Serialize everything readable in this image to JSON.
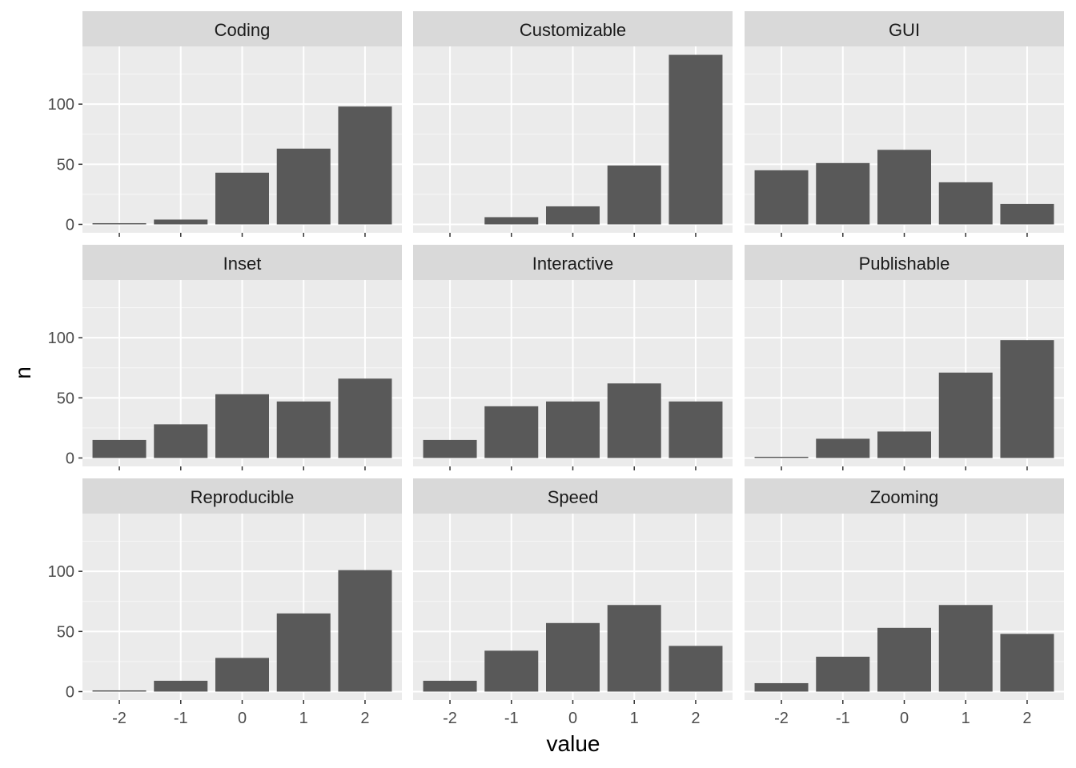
{
  "chart_data": {
    "type": "bar",
    "facet_layout": {
      "rows": 3,
      "cols": 3
    },
    "xlabel": "value",
    "ylabel": "n",
    "categories": [
      "-2",
      "-1",
      "0",
      "1",
      "2"
    ],
    "y_ticks": [
      0,
      50,
      100
    ],
    "ylim": [
      -7,
      148
    ],
    "grid": true,
    "colors": {
      "bar": "#595959",
      "panel_background": "#EBEBEB",
      "strip_background": "#D9D9D9",
      "gridline": "#FFFFFF"
    },
    "panels": [
      {
        "title": "Coding",
        "values": [
          1,
          4,
          43,
          63,
          98
        ]
      },
      {
        "title": "Customizable",
        "values": [
          0,
          6,
          15,
          49,
          141
        ]
      },
      {
        "title": "GUI",
        "values": [
          45,
          51,
          62,
          35,
          17
        ]
      },
      {
        "title": "Inset",
        "values": [
          15,
          28,
          53,
          47,
          66
        ]
      },
      {
        "title": "Interactive",
        "values": [
          15,
          43,
          47,
          62,
          47
        ]
      },
      {
        "title": "Publishable",
        "values": [
          1,
          16,
          22,
          71,
          98
        ]
      },
      {
        "title": "Reproducible",
        "values": [
          1,
          9,
          28,
          65,
          101
        ]
      },
      {
        "title": "Speed",
        "values": [
          9,
          34,
          57,
          72,
          38
        ]
      },
      {
        "title": "Zooming",
        "values": [
          7,
          29,
          53,
          72,
          48
        ]
      }
    ]
  }
}
